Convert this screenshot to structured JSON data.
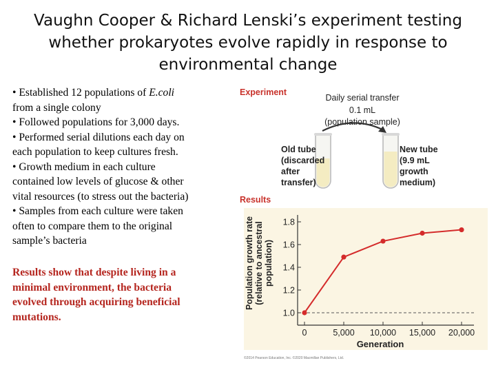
{
  "slide": {
    "title_lines": [
      "Vaughn Cooper & Richard Lenski’s experiment testing",
      "whether prokaryotes evolve rapidly in response to",
      "environmental change"
    ],
    "bullets": [
      [
        "• Established 12 populations of ",
        "E.coli",
        ""
      ],
      [
        "from a single colony",
        "",
        ""
      ],
      [
        "• Followed populations for 3,000 days.",
        "",
        ""
      ],
      [
        "• Performed serial dilutions each day on",
        "",
        ""
      ],
      [
        "each population to keep cultures fresh.",
        "",
        ""
      ],
      [
        "• Growth medium in each culture",
        "",
        ""
      ],
      [
        "contained low levels of glucose & other",
        "",
        ""
      ],
      [
        "vital resources (to stress out the bacteria)",
        "",
        ""
      ],
      [
        "• Samples from each culture were taken",
        "",
        ""
      ],
      [
        "often to compare them to the original",
        "",
        ""
      ],
      [
        "sample’s bacteria",
        "",
        ""
      ]
    ],
    "results_lines": [
      "Results show that despite living in a",
      "minimal environment,  the bacteria",
      "evolved through acquiring beneficial",
      "mutations."
    ]
  },
  "figure": {
    "experiment_heading": "Experiment",
    "transfer_lines": [
      "Daily serial transfer",
      "0.1 mL",
      "(population sample)"
    ],
    "old_tube_lines": [
      "Old tube",
      "(discarded",
      "after",
      "transfer)"
    ],
    "new_tube_lines": [
      "New tube",
      "(9.9 mL",
      "growth",
      "medium)"
    ],
    "results_heading": "Results",
    "copyright": "©2014 Pearson Education, Inc. ©2020 Macmillan Publishers, Ltd.",
    "accent_color": "#c8312a",
    "line_color": "#d42b2b",
    "tube_liquid_color": "#f4ecc2"
  },
  "chart_data": {
    "type": "line",
    "x": [
      0,
      5000,
      10000,
      15000,
      20000
    ],
    "x_tick_labels": [
      "0",
      "5,000",
      "10,000",
      "15,000",
      "20,000"
    ],
    "series": [
      {
        "values": [
          1.0,
          1.49,
          1.63,
          1.7,
          1.73
        ]
      }
    ],
    "points_x": [
      0,
      5000,
      10000,
      15000,
      20000
    ],
    "xlabel": "Generation",
    "ylabel_lines": [
      "Population growth rate",
      "(relative to ancestral",
      "population)"
    ],
    "y_ticks": [
      1.0,
      1.2,
      1.4,
      1.6,
      1.8
    ],
    "y_tick_labels": [
      "1.0",
      "1.2",
      "1.4",
      "1.6",
      "1.8"
    ],
    "xlim": [
      0,
      20000
    ],
    "ylim": [
      1.0,
      1.8
    ],
    "reference_line": 1.0,
    "grid": false
  }
}
